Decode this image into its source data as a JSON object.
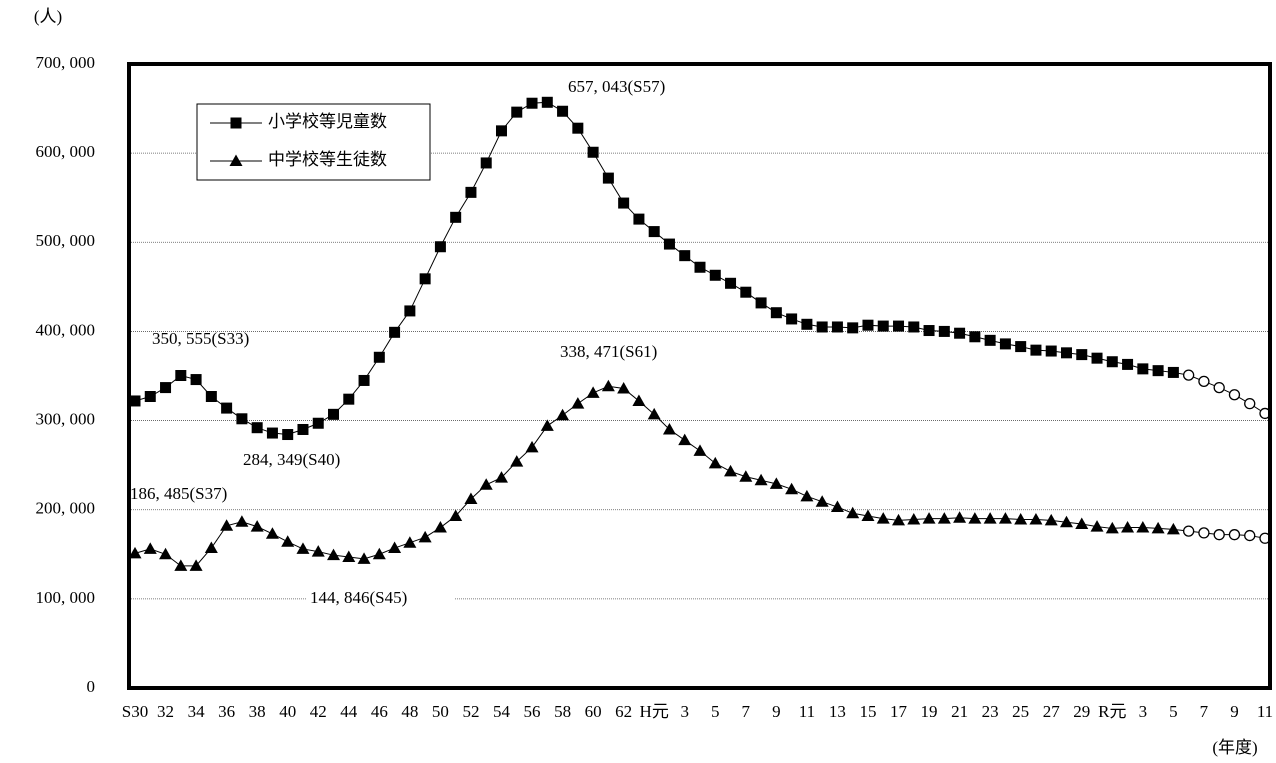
{
  "chart_data": {
    "type": "line",
    "y_label": "(人)",
    "x_label": "(年度)",
    "categories": [
      "S30",
      null,
      "32",
      null,
      "34",
      null,
      "36",
      null,
      "38",
      null,
      "40",
      null,
      "42",
      null,
      "44",
      null,
      "46",
      null,
      "48",
      null,
      "50",
      null,
      "52",
      null,
      "54",
      null,
      "56",
      null,
      "58",
      null,
      "60",
      null,
      "62",
      null,
      "H元",
      null,
      "3",
      null,
      "5",
      null,
      "7",
      null,
      "9",
      null,
      "11",
      null,
      "13",
      null,
      "15",
      null,
      "17",
      null,
      "19",
      null,
      "21",
      null,
      "23",
      null,
      "25",
      null,
      "27",
      null,
      "29",
      null,
      "R元",
      null,
      "3",
      null,
      "5",
      null,
      "7",
      null,
      "9",
      null,
      "11"
    ],
    "series": [
      {
        "name": "小学校等児童数",
        "color": "#000000",
        "marker": "square",
        "values": [
          322000,
          327000,
          337000,
          350555,
          346000,
          327000,
          314000,
          302000,
          292000,
          286000,
          284349,
          290000,
          297000,
          307000,
          324000,
          345000,
          371000,
          399000,
          423000,
          459000,
          495000,
          528000,
          556000,
          589000,
          625000,
          646000,
          656000,
          657043,
          647000,
          628000,
          601000,
          572000,
          544000,
          526000,
          512000,
          498000,
          485000,
          472000,
          463000,
          454000,
          444000,
          432000,
          421000,
          414000,
          408000,
          405000,
          405000,
          404000,
          407000,
          406000,
          406000,
          405000,
          401000,
          400000,
          398000,
          394000,
          390000,
          386000,
          383000,
          379000,
          378000,
          376000,
          374000,
          370000,
          366000,
          363000,
          358000,
          356000,
          354000,
          351000,
          344000,
          337000,
          329000,
          319000,
          308000
        ]
      },
      {
        "name": "中学校等生徒数",
        "color": "#000000",
        "marker": "triangle",
        "values": [
          151000,
          156000,
          150000,
          137000,
          137000,
          157000,
          182000,
          186485,
          181000,
          173000,
          164000,
          156000,
          153000,
          149000,
          147000,
          144846,
          150000,
          157000,
          163000,
          169000,
          180000,
          193000,
          212000,
          228000,
          236000,
          254000,
          270000,
          294000,
          306000,
          319000,
          331000,
          338471,
          336000,
          322000,
          307000,
          290000,
          278000,
          266000,
          252000,
          243000,
          237000,
          233000,
          229000,
          223000,
          215000,
          209000,
          203000,
          196000,
          193000,
          190000,
          188000,
          189000,
          190000,
          190000,
          191000,
          190000,
          190000,
          190000,
          189000,
          189000,
          188000,
          186000,
          184000,
          181000,
          179000,
          180000,
          180000,
          179000,
          178000,
          176000,
          174000,
          172000,
          172000,
          171000,
          168000
        ]
      }
    ],
    "hollow_from_index": 69,
    "ylim": [
      0,
      700000
    ],
    "yticks": [
      0,
      {
        "value": 100000,
        "label": "100, 000"
      },
      {
        "value": 200000,
        "label": "200, 000"
      },
      {
        "value": 300000,
        "label": "300, 000"
      },
      {
        "value": 400000,
        "label": "400, 000"
      },
      {
        "value": 500000,
        "label": "500, 000"
      },
      {
        "value": 600000,
        "label": "600, 000"
      },
      {
        "value": 700000,
        "label": "700, 000"
      }
    ],
    "grid": true,
    "legend": "upper left",
    "annotations": [
      "657, 043(S57)",
      "350, 555(S33)",
      "338, 471(S61)",
      "284, 349(S40)",
      "186, 485(S37)",
      "144, 846(S45)"
    ]
  }
}
